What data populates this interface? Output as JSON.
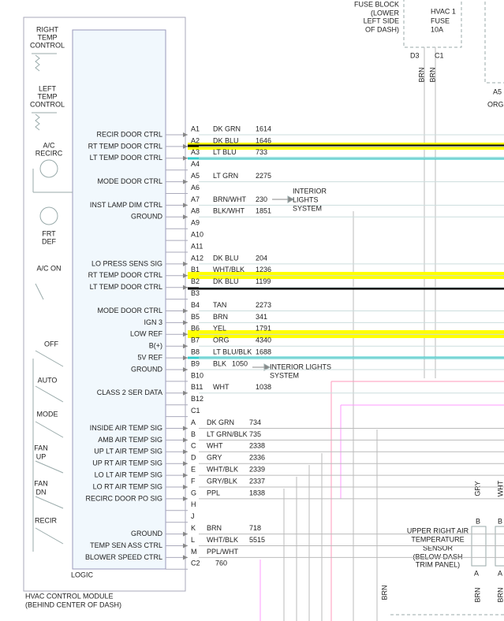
{
  "fuse_block": {
    "label": [
      "FUSE BLOCK",
      "(LOWER",
      "LEFT SIDE",
      "OF DASH)"
    ],
    "fuse": [
      "HVAC 1",
      "FUSE",
      "10A"
    ],
    "terminals": [
      "D3",
      "C1"
    ],
    "wires": [
      "BRN",
      "BRN"
    ]
  },
  "right_connector": {
    "pin": "A5",
    "wire": "ORG"
  },
  "module": {
    "name": [
      "HVAC CONTROL MODULE",
      "(BEHIND CENTER OF DASH)"
    ],
    "logic": "LOGIC",
    "controls": {
      "right_temp": [
        "RIGHT",
        "TEMP",
        "CONTROL"
      ],
      "left_temp": [
        "LEFT",
        "TEMP",
        "CONTROL"
      ],
      "ac_recirc": [
        "A/C",
        "RECIRC"
      ],
      "frt_def": [
        "FRT",
        "DEF"
      ],
      "ac_on": "A/C ON",
      "off": "OFF",
      "auto": "AUTO",
      "mode": "MODE",
      "fan_up": [
        "FAN",
        "UP"
      ],
      "fan_dn": [
        "FAN",
        "DN"
      ],
      "recir": "RECIR"
    },
    "pins": [
      {
        "pin": "A1",
        "signal": "RECIR DOOR CTRL",
        "wire": "DK GRN",
        "circuit": "1614"
      },
      {
        "pin": "A2",
        "signal": "RT TEMP DOOR CTRL",
        "wire": "DK BLU",
        "circuit": "1646"
      },
      {
        "pin": "A3",
        "signal": "LT TEMP DOOR CTRL",
        "wire": "LT BLU",
        "circuit": "733"
      },
      {
        "pin": "A4"
      },
      {
        "pin": "A5",
        "signal": "MODE DOOR CTRL",
        "wire": "LT GRN",
        "circuit": "2275"
      },
      {
        "pin": "A6"
      },
      {
        "pin": "A7",
        "signal": "INST LAMP DIM CTRL",
        "wire": "BRN/WHT",
        "circuit": "230"
      },
      {
        "pin": "A8",
        "signal": "GROUND",
        "wire": "BLK/WHT",
        "circuit": "1851"
      },
      {
        "pin": "A9"
      },
      {
        "pin": "A10"
      },
      {
        "pin": "A11"
      },
      {
        "pin": "A12",
        "signal": "LO PRESS SENS SIG",
        "wire": "DK BLU",
        "circuit": "204"
      },
      {
        "pin": "B1",
        "signal": "RT TEMP DOOR CTRL",
        "wire": "WHT/BLK",
        "circuit": "1236"
      },
      {
        "pin": "B2",
        "signal": "LT TEMP DOOR CTRL",
        "wire": "DK BLU",
        "circuit": "1199"
      },
      {
        "pin": "B3"
      },
      {
        "pin": "B4",
        "signal": "MODE DOOR CTRL",
        "wire": "TAN",
        "circuit": "2273"
      },
      {
        "pin": "B5",
        "signal": "IGN 3",
        "wire": "BRN",
        "circuit": "341"
      },
      {
        "pin": "B6",
        "signal": "LOW REF",
        "wire": "YEL",
        "circuit": "1791"
      },
      {
        "pin": "B7",
        "signal": "B(+)",
        "wire": "ORG",
        "circuit": "4340"
      },
      {
        "pin": "B8",
        "signal": "5V REF",
        "wire": "LT BLU/BLK",
        "circuit": "1688"
      },
      {
        "pin": "B9",
        "signal": "GROUND",
        "wire": "BLK",
        "circuit": "1050"
      },
      {
        "pin": "B10"
      },
      {
        "pin": "B11",
        "signal": "CLASS 2 SER DATA",
        "wire": "WHT",
        "circuit": "1038"
      },
      {
        "pin": "B12"
      },
      {
        "pin": "C1"
      },
      {
        "pin": "A",
        "signal": "INSIDE AIR TEMP SIG",
        "wire": "DK GRN",
        "circuit": "734"
      },
      {
        "pin": "B",
        "signal": "AMB AIR TEMP SIG",
        "wire": "LT GRN/BLK",
        "circuit": "735"
      },
      {
        "pin": "C",
        "signal": "UP LT AIR TEMP SIG",
        "wire": "WHT",
        "circuit": "2338"
      },
      {
        "pin": "D",
        "signal": "UP RT AIR TEMP SIG",
        "wire": "GRY",
        "circuit": "2336"
      },
      {
        "pin": "E",
        "signal": "LO LT AIR TEMP SIG",
        "wire": "WHT/BLK",
        "circuit": "2339"
      },
      {
        "pin": "F",
        "signal": "LO RT AIR TEMP SIG",
        "wire": "GRY/BLK",
        "circuit": "2337"
      },
      {
        "pin": "G",
        "signal": "RECIRC DOOR PO SIG",
        "wire": "PPL",
        "circuit": "1838"
      },
      {
        "pin": "H"
      },
      {
        "pin": "J"
      },
      {
        "pin": "K",
        "signal": "GROUND",
        "wire": "BRN",
        "circuit": "718"
      },
      {
        "pin": "L",
        "signal": "TEMP SEN ASS CTRL",
        "wire": "WHT/BLK",
        "circuit": "5515"
      },
      {
        "pin": "M",
        "signal": "BLOWER SPEED CTRL",
        "wire": "PPL/WHT"
      },
      {
        "pin": "C2",
        "circuit": "760"
      }
    ]
  },
  "interior_lights": [
    [
      "INTERIOR",
      "LIGHTS",
      "SYSTEM"
    ],
    [
      "INTERIOR LIGHTS",
      "SYSTEM"
    ]
  ],
  "sensor": {
    "wires_top": [
      "GRY",
      "WHT"
    ],
    "label": [
      "UPPER RIGHT AIR",
      "TEMPERATURE",
      "SENSOR",
      "(BELOW DASH",
      "TRIM PANEL)"
    ],
    "terminals_top": [
      "B",
      "B"
    ],
    "terminals_bottom": [
      "A",
      "A"
    ],
    "wires_bottom": [
      "BRN",
      "BRN"
    ]
  },
  "ground_wire": "BRN"
}
